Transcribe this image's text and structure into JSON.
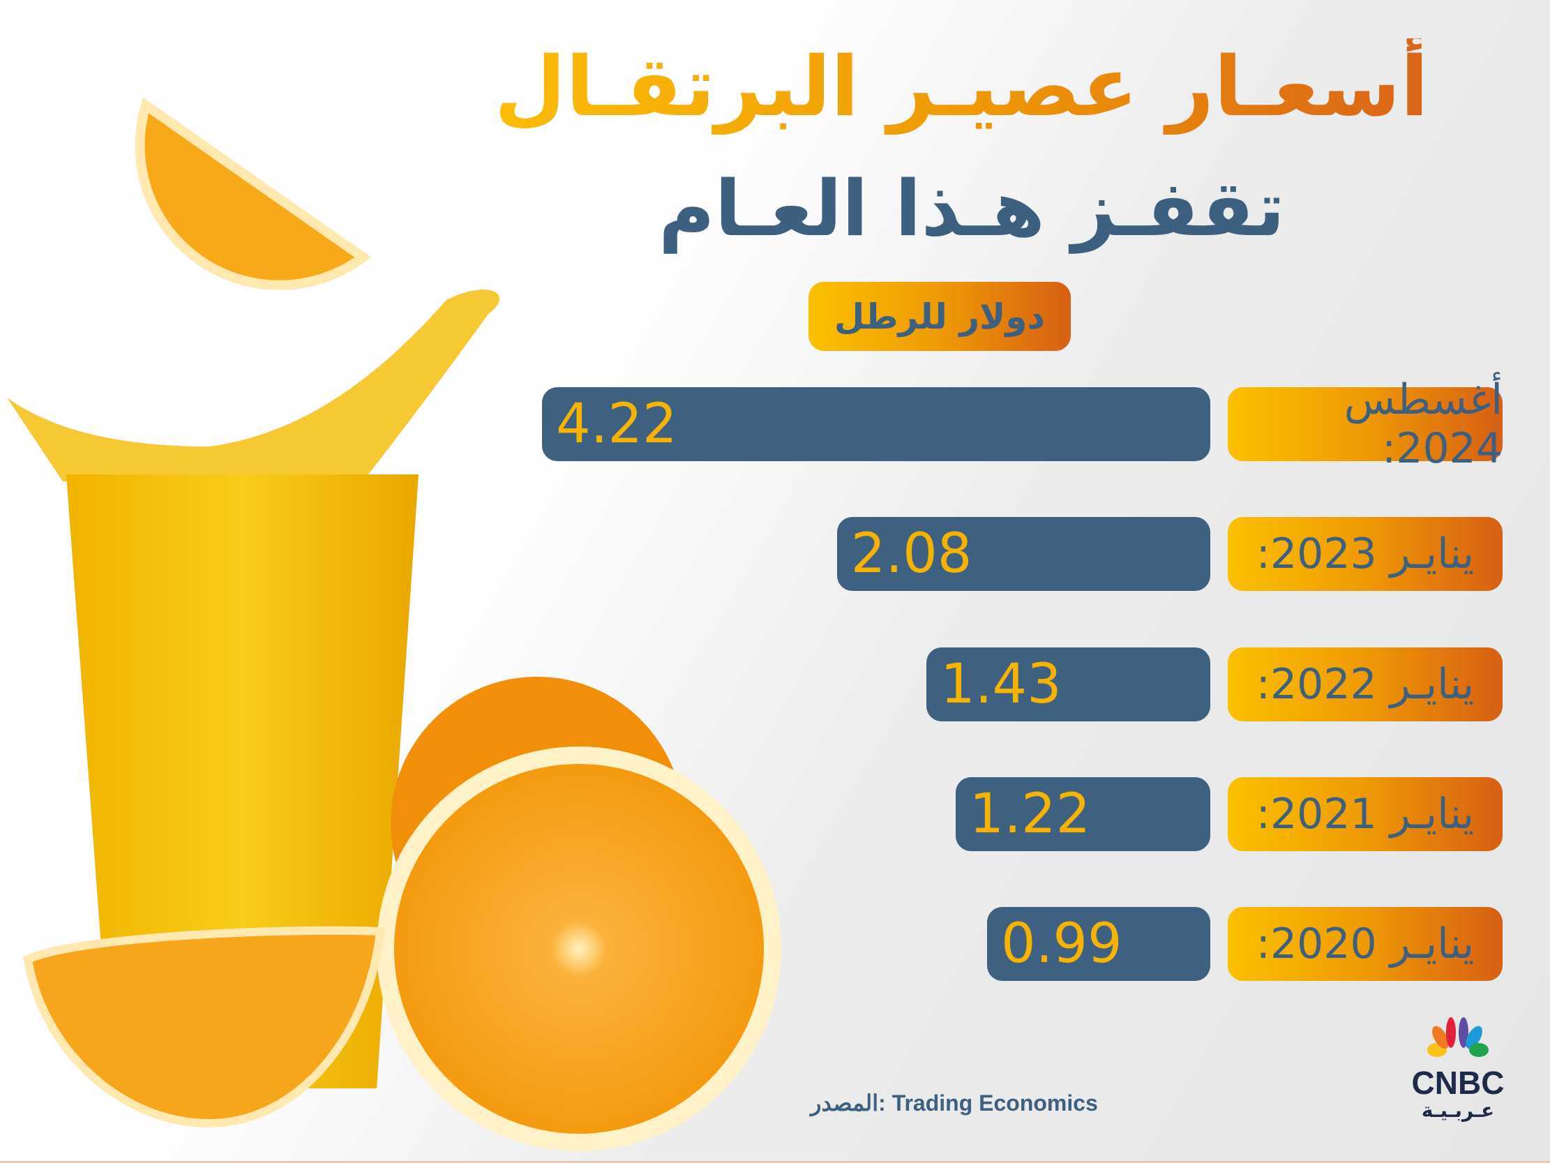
{
  "title_line1": "أسعـار عصيـر البرتقـال",
  "title_line2": "تقفـز هـذا العـام",
  "unit_label": "دولار للرطل",
  "chart_data": {
    "type": "bar",
    "orientation": "horizontal",
    "title": "أسعـار عصيـر البرتقـال تقفـز هـذا العـام",
    "ylabel": "دولار للرطل",
    "categories": [
      "أغسطس 2024:",
      "ينايـر 2023:",
      "ينايـر 2022:",
      "ينايـر 2021:",
      "ينايـر 2020:"
    ],
    "values": [
      4.22,
      2.08,
      1.43,
      1.22,
      0.99
    ],
    "value_labels": [
      "4.22",
      "2.08",
      "1.43",
      "1.22",
      "0.99"
    ],
    "bar_color": "#3e6081",
    "label_color": "#f6b400"
  },
  "source": "المصدر: Trading Economics",
  "logo": {
    "text": "CNBC",
    "subtext": "عـربـيـة"
  },
  "colors": {
    "accent_orange": "#ef9a05",
    "navy": "#3d5f80"
  }
}
